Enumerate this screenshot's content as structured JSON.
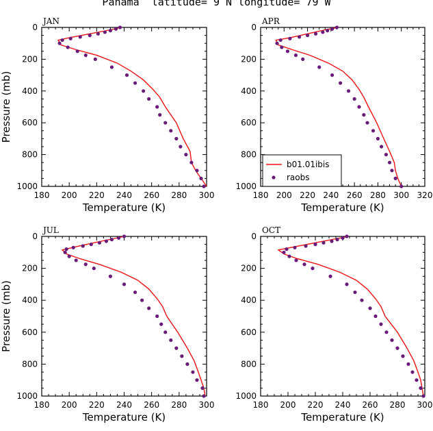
{
  "title": "Panama  latitude= 9 N longitude= 79 W",
  "colors": {
    "model": "#ee1111",
    "obs": "#6a1b7a"
  },
  "legend": {
    "model_label": "b01.01ibis",
    "obs_label": "raobs",
    "panel": 1
  },
  "chart_data": [
    {
      "type": "line",
      "panel_label": "JAN",
      "xlabel": "Temperature (K)",
      "ylabel": "Pressure (mb)",
      "xlim": [
        180,
        300
      ],
      "xticks": [
        180,
        200,
        220,
        240,
        260,
        280,
        300
      ],
      "ylim": [
        0,
        1000
      ],
      "yticks": [
        0,
        200,
        400,
        600,
        800,
        1000
      ],
      "y_inverted": true,
      "series": [
        {
          "name": "b01.01ibis",
          "kind": "line",
          "points": [
            [
              238,
              0
            ],
            [
              230,
              15
            ],
            [
              215,
              40
            ],
            [
              200,
              65
            ],
            [
              192,
              80
            ],
            [
              194,
              110
            ],
            [
              205,
              140
            ],
            [
              220,
              175
            ],
            [
              235,
              225
            ],
            [
              245,
              275
            ],
            [
              254,
              330
            ],
            [
              261,
              390
            ],
            [
              266,
              440
            ],
            [
              270,
              500
            ],
            [
              278,
              600
            ],
            [
              283,
              700
            ],
            [
              288,
              780
            ],
            [
              289,
              850
            ],
            [
              292,
              900
            ],
            [
              296,
              950
            ],
            [
              300,
              1000
            ]
          ]
        },
        {
          "name": "raobs",
          "kind": "scatter",
          "points": [
            [
              237,
              0
            ],
            [
              234,
              10
            ],
            [
              230,
              20
            ],
            [
              226,
              30
            ],
            [
              221,
              40
            ],
            [
              215,
              50
            ],
            [
              208,
              60
            ],
            [
              201,
              70
            ],
            [
              195,
              80
            ],
            [
              193,
              100
            ],
            [
              199,
              125
            ],
            [
              206,
              150
            ],
            [
              212,
              175
            ],
            [
              219,
              200
            ],
            [
              231,
              250
            ],
            [
              242,
              300
            ],
            [
              248,
              350
            ],
            [
              254,
              400
            ],
            [
              258,
              450
            ],
            [
              264,
              500
            ],
            [
              266,
              550
            ],
            [
              270,
              600
            ],
            [
              274,
              650
            ],
            [
              278,
              700
            ],
            [
              281,
              750
            ],
            [
              285,
              800
            ],
            [
              289,
              850
            ],
            [
              293,
              900
            ],
            [
              296,
              950
            ],
            [
              298,
              1000
            ]
          ]
        }
      ]
    },
    {
      "type": "line",
      "panel_label": "APR",
      "xlabel": "Temperature (K)",
      "ylabel": "",
      "xlim": [
        180,
        320
      ],
      "xticks": [
        180,
        200,
        220,
        240,
        260,
        280,
        300,
        320
      ],
      "ylim": [
        0,
        1000
      ],
      "yticks": [
        0,
        200,
        400,
        600,
        800,
        1000
      ],
      "y_inverted": true,
      "series": [
        {
          "name": "b01.01ibis",
          "kind": "line",
          "points": [
            [
              246,
              0
            ],
            [
              235,
              15
            ],
            [
              220,
              40
            ],
            [
              205,
              65
            ],
            [
              193,
              80
            ],
            [
              195,
              110
            ],
            [
              207,
              140
            ],
            [
              222,
              175
            ],
            [
              238,
              225
            ],
            [
              250,
              275
            ],
            [
              258,
              330
            ],
            [
              264,
              390
            ],
            [
              268,
              440
            ],
            [
              272,
              500
            ],
            [
              279,
              600
            ],
            [
              285,
              700
            ],
            [
              290,
              780
            ],
            [
              294,
              850
            ],
            [
              295,
              900
            ],
            [
              297,
              950
            ],
            [
              300,
              1000
            ]
          ]
        },
        {
          "name": "raobs",
          "kind": "scatter",
          "points": [
            [
              245,
              0
            ],
            [
              241,
              10
            ],
            [
              237,
              20
            ],
            [
              233,
              30
            ],
            [
              227,
              40
            ],
            [
              220,
              50
            ],
            [
              213,
              60
            ],
            [
              205,
              70
            ],
            [
              197,
              80
            ],
            [
              194,
              100
            ],
            [
              198,
              125
            ],
            [
              203,
              150
            ],
            [
              210,
              175
            ],
            [
              216,
              200
            ],
            [
              230,
              250
            ],
            [
              241,
              300
            ],
            [
              248,
              350
            ],
            [
              255,
              400
            ],
            [
              260,
              450
            ],
            [
              264,
              500
            ],
            [
              268,
              550
            ],
            [
              271,
              600
            ],
            [
              276,
              650
            ],
            [
              280,
              700
            ],
            [
              283,
              750
            ],
            [
              287,
              800
            ],
            [
              290,
              850
            ],
            [
              292,
              900
            ],
            [
              295,
              950
            ],
            [
              300,
              1000
            ]
          ]
        }
      ]
    },
    {
      "type": "line",
      "panel_label": "JUL",
      "xlabel": "Temperature (K)",
      "ylabel": "Pressure (mb)",
      "xlim": [
        180,
        300
      ],
      "xticks": [
        180,
        200,
        220,
        240,
        260,
        280,
        300
      ],
      "ylim": [
        0,
        1000
      ],
      "yticks": [
        0,
        200,
        400,
        600,
        800,
        1000
      ],
      "y_inverted": true,
      "series": [
        {
          "name": "b01.01ibis",
          "kind": "line",
          "points": [
            [
              240,
              0
            ],
            [
              232,
              15
            ],
            [
              218,
              40
            ],
            [
              205,
              65
            ],
            [
              195,
              85
            ],
            [
              198,
              110
            ],
            [
              208,
              140
            ],
            [
              222,
              175
            ],
            [
              238,
              225
            ],
            [
              250,
              275
            ],
            [
              258,
              330
            ],
            [
              264,
              390
            ],
            [
              268,
              440
            ],
            [
              271,
              500
            ],
            [
              279,
              600
            ],
            [
              286,
              700
            ],
            [
              291,
              780
            ],
            [
              294,
              850
            ],
            [
              296,
              900
            ],
            [
              298,
              950
            ],
            [
              299,
              1000
            ]
          ]
        },
        {
          "name": "raobs",
          "kind": "scatter",
          "points": [
            [
              240,
              0
            ],
            [
              236,
              10
            ],
            [
              231,
              20
            ],
            [
              227,
              30
            ],
            [
              222,
              40
            ],
            [
              216,
              50
            ],
            [
              210,
              60
            ],
            [
              203,
              70
            ],
            [
              198,
              80
            ],
            [
              197,
              100
            ],
            [
              200,
              125
            ],
            [
              205,
              150
            ],
            [
              212,
              175
            ],
            [
              218,
              200
            ],
            [
              230,
              250
            ],
            [
              240,
              300
            ],
            [
              248,
              350
            ],
            [
              253,
              400
            ],
            [
              258,
              450
            ],
            [
              264,
              500
            ],
            [
              267,
              550
            ],
            [
              270,
              600
            ],
            [
              274,
              650
            ],
            [
              278,
              700
            ],
            [
              282,
              750
            ],
            [
              286,
              800
            ],
            [
              290,
              850
            ],
            [
              293,
              900
            ],
            [
              297,
              950
            ],
            [
              298,
              1000
            ]
          ]
        }
      ]
    },
    {
      "type": "line",
      "panel_label": "OCT",
      "xlabel": "Temperature (K)",
      "ylabel": "",
      "xlim": [
        180,
        300
      ],
      "xticks": [
        180,
        200,
        220,
        240,
        260,
        280,
        300
      ],
      "ylim": [
        0,
        1000
      ],
      "yticks": [
        0,
        200,
        400,
        600,
        800,
        1000
      ],
      "y_inverted": true,
      "series": [
        {
          "name": "b01.01ibis",
          "kind": "line",
          "points": [
            [
              244,
              0
            ],
            [
              235,
              15
            ],
            [
              220,
              40
            ],
            [
              205,
              65
            ],
            [
              193,
              85
            ],
            [
              197,
              110
            ],
            [
              207,
              140
            ],
            [
              222,
              175
            ],
            [
              238,
              225
            ],
            [
              250,
              275
            ],
            [
              258,
              330
            ],
            [
              264,
              390
            ],
            [
              268,
              440
            ],
            [
              271,
              500
            ],
            [
              280,
              600
            ],
            [
              287,
              700
            ],
            [
              292,
              780
            ],
            [
              295,
              850
            ],
            [
              297,
              900
            ],
            [
              298,
              950
            ],
            [
              299,
              1000
            ]
          ]
        },
        {
          "name": "raobs",
          "kind": "scatter",
          "points": [
            [
              243,
              0
            ],
            [
              240,
              10
            ],
            [
              236,
              20
            ],
            [
              232,
              30
            ],
            [
              226,
              40
            ],
            [
              220,
              50
            ],
            [
              213,
              60
            ],
            [
              205,
              70
            ],
            [
              199,
              80
            ],
            [
              197,
              100
            ],
            [
              201,
              125
            ],
            [
              206,
              150
            ],
            [
              212,
              175
            ],
            [
              218,
              200
            ],
            [
              231,
              250
            ],
            [
              243,
              300
            ],
            [
              249,
              350
            ],
            [
              254,
              400
            ],
            [
              260,
              450
            ],
            [
              264,
              500
            ],
            [
              268,
              550
            ],
            [
              272,
              600
            ],
            [
              276,
              650
            ],
            [
              280,
              700
            ],
            [
              284,
              750
            ],
            [
              288,
              800
            ],
            [
              291,
              850
            ],
            [
              294,
              900
            ],
            [
              297,
              950
            ],
            [
              299,
              1000
            ]
          ]
        }
      ]
    }
  ]
}
